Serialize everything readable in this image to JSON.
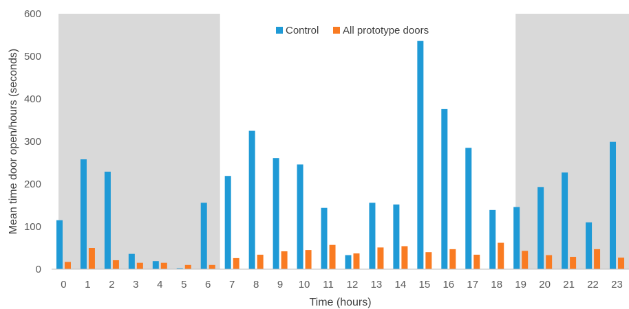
{
  "chart_data": {
    "type": "bar",
    "xlabel": "Time (hours)",
    "ylabel": "Mean time door open/hours (seconds)",
    "ylim": [
      0,
      600
    ],
    "yticks": [
      0,
      100,
      200,
      300,
      400,
      500,
      600
    ],
    "categories": [
      "0",
      "1",
      "2",
      "3",
      "4",
      "5",
      "6",
      "7",
      "8",
      "9",
      "10",
      "11",
      "12",
      "13",
      "14",
      "15",
      "16",
      "17",
      "18",
      "19",
      "20",
      "21",
      "22",
      "23"
    ],
    "series": [
      {
        "name": "Control",
        "color": "#1f9ad6",
        "values": [
          115,
          258,
          229,
          36,
          19,
          2,
          156,
          219,
          325,
          261,
          246,
          144,
          33,
          156,
          152,
          536,
          376,
          285,
          139,
          146,
          193,
          227,
          110,
          299
        ]
      },
      {
        "name": "All prototype doors",
        "color": "#f97b22",
        "values": [
          17,
          50,
          21,
          15,
          15,
          10,
          10,
          26,
          34,
          42,
          45,
          57,
          37,
          51,
          54,
          40,
          47,
          34,
          62,
          43,
          33,
          29,
          47,
          27
        ]
      }
    ],
    "shaded_hours": [
      [
        "0",
        "6"
      ],
      [
        "19",
        "23"
      ]
    ],
    "shade_color": "#d9d9d9",
    "legend_position": "top-center"
  }
}
